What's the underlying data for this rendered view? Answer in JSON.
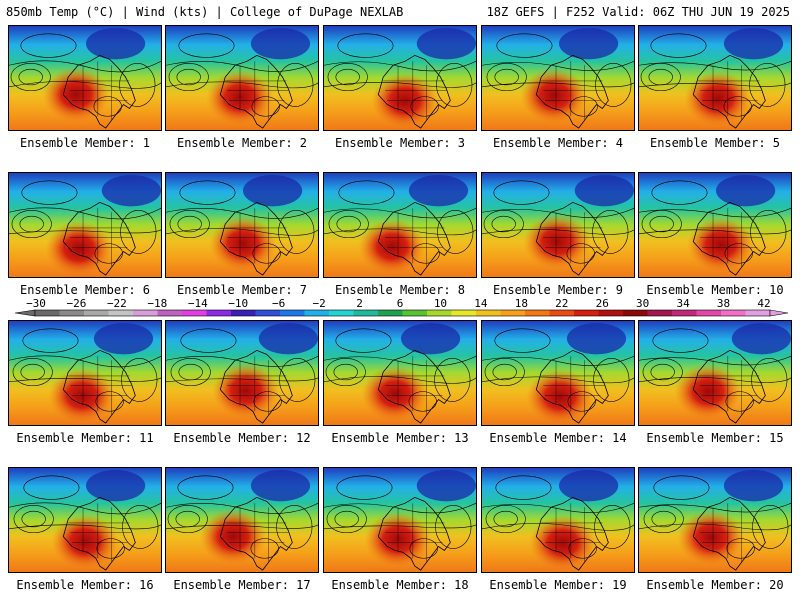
{
  "header": {
    "left": "850mb Temp (°C) | Wind (kts) | College of DuPage NEXLAB",
    "right": "18Z GEFS | F252 Valid: 06Z THU JUN 19 2025"
  },
  "panels": [
    {
      "label": "Ensemble Member: 1"
    },
    {
      "label": "Ensemble Member: 2"
    },
    {
      "label": "Ensemble Member: 3"
    },
    {
      "label": "Ensemble Member: 4"
    },
    {
      "label": "Ensemble Member: 5"
    },
    {
      "label": "Ensemble Member: 6"
    },
    {
      "label": "Ensemble Member: 7"
    },
    {
      "label": "Ensemble Member: 8"
    },
    {
      "label": "Ensemble Member: 9"
    },
    {
      "label": "Ensemble Member: 10"
    },
    {
      "label": "Ensemble Member: 11"
    },
    {
      "label": "Ensemble Member: 12"
    },
    {
      "label": "Ensemble Member: 13"
    },
    {
      "label": "Ensemble Member: 14"
    },
    {
      "label": "Ensemble Member: 15"
    },
    {
      "label": "Ensemble Member: 16"
    },
    {
      "label": "Ensemble Member: 17"
    },
    {
      "label": "Ensemble Member: 18"
    },
    {
      "label": "Ensemble Member: 19"
    },
    {
      "label": "Ensemble Member: 20"
    }
  ],
  "colorbar": {
    "ticks": [
      "-30",
      "-26",
      "-22",
      "-18",
      "-14",
      "-10",
      "-6",
      "-2",
      "2",
      "6",
      "10",
      "14",
      "18",
      "22",
      "26",
      "30",
      "34",
      "38",
      "42"
    ],
    "colors": [
      "#6a6a6a",
      "#8a8a8a",
      "#a8a8a8",
      "#c4c4c4",
      "#d8a0d8",
      "#c060c0",
      "#e040e0",
      "#8a2be2",
      "#3b1fb5",
      "#2f4fd6",
      "#1f78e8",
      "#23b0e8",
      "#25d3d3",
      "#1fb89a",
      "#20a050",
      "#58c230",
      "#a6d92e",
      "#e6e62a",
      "#f0c020",
      "#f5a01a",
      "#f07818",
      "#e84c14",
      "#d42010",
      "#b01010",
      "#8a0a0a",
      "#a01850",
      "#c0287a",
      "#e048a8",
      "#f070c8",
      "#e0a0e0"
    ]
  }
}
